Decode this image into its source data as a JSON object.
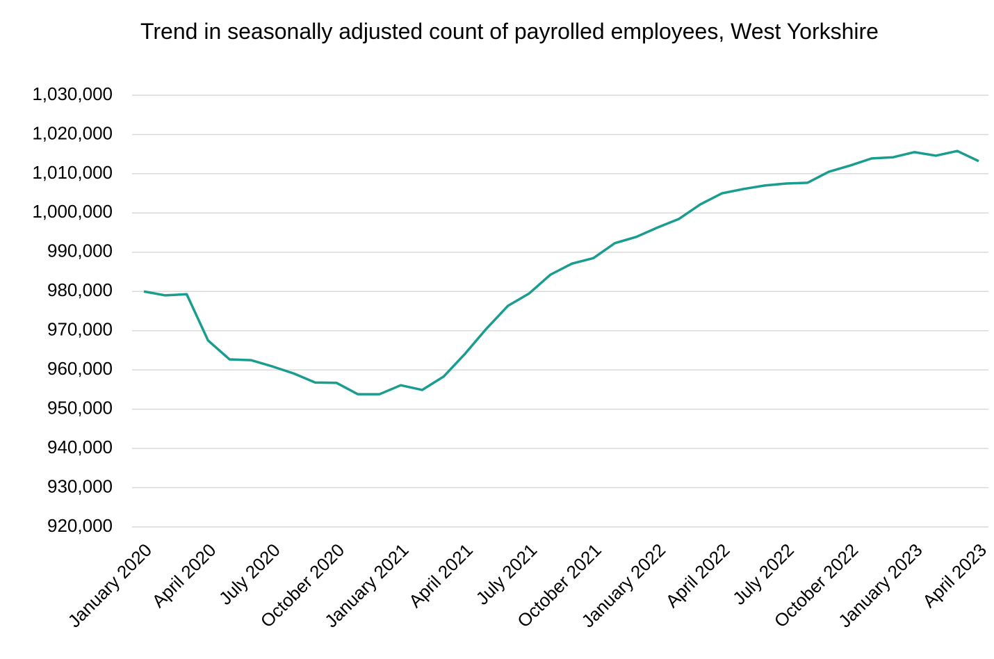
{
  "chart_data": {
    "type": "line",
    "title": "Trend in seasonally adjusted count of payrolled employees, West Yorkshire",
    "categories": [
      "January 2020",
      null,
      null,
      "April 2020",
      null,
      null,
      "July 2020",
      null,
      null,
      "October 2020",
      null,
      null,
      "January 2021",
      null,
      null,
      "April 2021",
      null,
      null,
      "July 2021",
      null,
      null,
      "October 2021",
      null,
      null,
      "January 2022",
      null,
      null,
      "April 2022",
      null,
      null,
      "July 2022",
      null,
      null,
      "October 2022",
      null,
      null,
      "January 2023",
      null,
      null,
      "April 2023"
    ],
    "series": [
      {
        "color": "#1a9c8f",
        "values": [
          980000,
          979000,
          979300,
          967500,
          962700,
          962500,
          960900,
          959100,
          956800,
          956700,
          953800,
          953800,
          956100,
          954900,
          958300,
          964100,
          970500,
          976300,
          979500,
          984300,
          987100,
          988500,
          992300,
          993900,
          996300,
          998500,
          1002200,
          1005000,
          1006100,
          1007000,
          1007500,
          1007700,
          1010500,
          1012100,
          1013900,
          1014200,
          1015500,
          1014600,
          1015800,
          1013200
        ]
      }
    ],
    "ylim": [
      920000,
      1030000
    ],
    "yticks": [
      {
        "value": 920000,
        "label": "920,000"
      },
      {
        "value": 930000,
        "label": "930,000"
      },
      {
        "value": 940000,
        "label": "940,000"
      },
      {
        "value": 950000,
        "label": "950,000"
      },
      {
        "value": 960000,
        "label": "960,000"
      },
      {
        "value": 970000,
        "label": "970,000"
      },
      {
        "value": 980000,
        "label": "980,000"
      },
      {
        "value": 990000,
        "label": "990,000"
      },
      {
        "value": 1000000,
        "label": "1,000,000"
      },
      {
        "value": 1010000,
        "label": "1,010,000"
      },
      {
        "value": 1020000,
        "label": "1,020,000"
      },
      {
        "value": 1030000,
        "label": "1,030,000"
      }
    ],
    "grid": true
  }
}
